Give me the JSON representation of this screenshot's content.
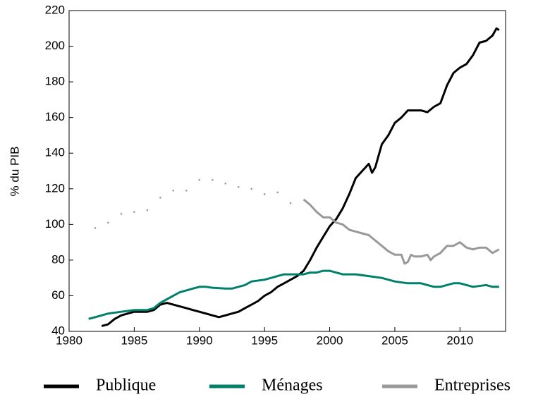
{
  "chart_data": {
    "type": "line",
    "ylabel": "% du PIB",
    "xlim": [
      1980,
      2013.5
    ],
    "xticks": [
      1980,
      1985,
      1990,
      1995,
      2000,
      2005,
      2010
    ],
    "ylim": [
      40,
      220
    ],
    "yticks": [
      40,
      60,
      80,
      100,
      120,
      140,
      160,
      180,
      200,
      220
    ],
    "grid": false,
    "legend": "bottom",
    "series": [
      {
        "name": "Publique",
        "color": "#000000",
        "segments": [
          {
            "style": "solid",
            "x": [
              1982.5,
              1983,
              1983.5,
              1984,
              1984.5,
              1985,
              1985.5,
              1986,
              1986.5,
              1987,
              1987.5,
              1988,
              1988.5,
              1989,
              1989.5,
              1990,
              1990.5,
              1991,
              1991.5,
              1992,
              1992.5,
              1993,
              1993.5,
              1994,
              1994.5,
              1995,
              1995.5,
              1996,
              1996.5,
              1997,
              1997.5,
              1998,
              1998.5,
              1999,
              1999.5,
              2000,
              2000.5,
              2001,
              2001.5,
              2002,
              2002.5,
              2003,
              2003.25,
              2003.5,
              2004,
              2004.5,
              2005,
              2005.5,
              2006,
              2006.5,
              2007,
              2007.5,
              2008,
              2008.5,
              2009,
              2009.5,
              2010,
              2010.5,
              2011,
              2011.5,
              2012,
              2012.5,
              2012.8,
              2013
            ],
            "values": [
              43,
              44,
              47,
              49,
              50,
              51,
              51,
              51,
              52,
              55,
              56,
              55,
              54,
              53,
              52,
              51,
              50,
              49,
              48,
              49,
              50,
              51,
              53,
              55,
              57,
              60,
              62,
              65,
              67,
              69,
              71,
              74,
              80,
              87,
              93,
              99,
              103,
              109,
              117,
              126,
              130,
              134,
              129,
              132,
              145,
              150,
              157,
              160,
              164,
              164,
              164,
              163,
              166,
              168,
              178,
              185,
              188,
              190,
              195,
              202,
              203,
              206,
              210,
              209
            ]
          }
        ]
      },
      {
        "name": "Ménages",
        "color": "#00806a",
        "segments": [
          {
            "style": "solid",
            "x": [
              1981.5,
              1982,
              1982.5,
              1983,
              1984,
              1985,
              1986,
              1986.5,
              1987,
              1987.5,
              1988,
              1988.5,
              1989,
              1989.5,
              1990,
              1990.5,
              1991,
              1992,
              1992.5,
              1993,
              1993.5,
              1994,
              1995,
              1995.5,
              1996,
              1996.5,
              1997,
              1997.5,
              1998,
              1998.5,
              1999,
              1999.5,
              2000,
              2000.5,
              2001,
              2002,
              2003,
              2004,
              2004.5,
              2005,
              2006,
              2006.5,
              2007,
              2008,
              2008.5,
              2009,
              2009.5,
              2010,
              2010.5,
              2011,
              2012,
              2012.5,
              2013
            ],
            "values": [
              47,
              48,
              49,
              50,
              51,
              52,
              52,
              53,
              56,
              58,
              60,
              62,
              63,
              64,
              65,
              65,
              64.5,
              64,
              64,
              65,
              66,
              68,
              69,
              70,
              71,
              72,
              72,
              72,
              72,
              73,
              73,
              74,
              74,
              73,
              72,
              72,
              71,
              70,
              69,
              68,
              67,
              67,
              67,
              65,
              65,
              66,
              67,
              67,
              66,
              65,
              66,
              65,
              65
            ]
          }
        ]
      },
      {
        "name": "Entreprises",
        "color": "#999999",
        "segments": [
          {
            "style": "dotted",
            "x": [
              1982,
              1983,
              1984,
              1985,
              1986,
              1987,
              1988,
              1989,
              1990,
              1991,
              1992,
              1993,
              1994,
              1995,
              1996,
              1997
            ],
            "values": [
              98,
              101,
              106,
              107,
              108,
              115,
              119,
              119,
              125,
              125,
              123,
              121,
              120,
              117,
              118,
              112
            ]
          },
          {
            "style": "solid",
            "x": [
              1998,
              1998.5,
              1999,
              1999.5,
              2000,
              2000.5,
              2001,
              2001.5,
              2002,
              2002.5,
              2003,
              2003.5,
              2004,
              2004.5,
              2005,
              2005.5,
              2005.75,
              2006,
              2006.25,
              2006.5,
              2007,
              2007.5,
              2007.75,
              2008,
              2008.5,
              2009,
              2009.5,
              2010,
              2010.5,
              2011,
              2011.5,
              2012,
              2012.5,
              2013
            ],
            "values": [
              114,
              111,
              107,
              104,
              104,
              101,
              100,
              97,
              96,
              95,
              94,
              91,
              88,
              85,
              83,
              83,
              78,
              79,
              83,
              82,
              82,
              83,
              80,
              82,
              84,
              88,
              88,
              90,
              87,
              86,
              87,
              87,
              84,
              86
            ]
          }
        ]
      }
    ]
  }
}
